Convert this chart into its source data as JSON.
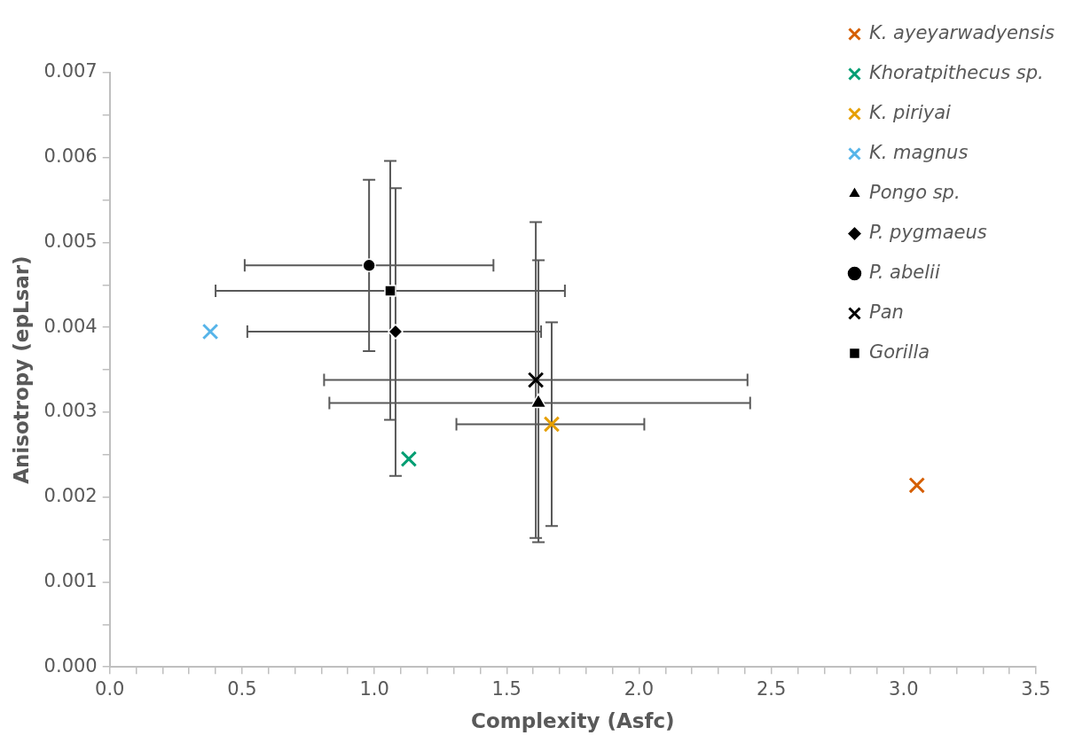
{
  "chart_data": {
    "type": "scatter",
    "xlabel": "Complexity (Asfc)",
    "ylabel": "Anisotropy (epLsar)",
    "xlim": [
      0,
      3.5
    ],
    "ylim": [
      0,
      0.007
    ],
    "xticks": [
      {
        "value": 0,
        "label": "0.0"
      },
      {
        "value": 0.1,
        "label": null
      },
      {
        "value": 0.2,
        "label": null
      },
      {
        "value": 0.3,
        "label": null
      },
      {
        "value": 0.4,
        "label": null
      },
      {
        "value": 0.5,
        "label": "0.5"
      },
      {
        "value": 0.6,
        "label": null
      },
      {
        "value": 0.7,
        "label": null
      },
      {
        "value": 0.8,
        "label": null
      },
      {
        "value": 0.9,
        "label": null
      },
      {
        "value": 1,
        "label": "1.0"
      },
      {
        "value": 1.1,
        "label": null
      },
      {
        "value": 1.2,
        "label": null
      },
      {
        "value": 1.3,
        "label": null
      },
      {
        "value": 1.4,
        "label": null
      },
      {
        "value": 1.5,
        "label": "1.5"
      },
      {
        "value": 1.6,
        "label": null
      },
      {
        "value": 1.7,
        "label": null
      },
      {
        "value": 1.8,
        "label": null
      },
      {
        "value": 1.9,
        "label": null
      },
      {
        "value": 2,
        "label": "2.0"
      },
      {
        "value": 2.1,
        "label": null
      },
      {
        "value": 2.2,
        "label": null
      },
      {
        "value": 2.3,
        "label": null
      },
      {
        "value": 2.4,
        "label": null
      },
      {
        "value": 2.5,
        "label": "2.5"
      },
      {
        "value": 2.6,
        "label": null
      },
      {
        "value": 2.7,
        "label": null
      },
      {
        "value": 2.8,
        "label": null
      },
      {
        "value": 2.9,
        "label": null
      },
      {
        "value": 3,
        "label": "3.0"
      },
      {
        "value": 3.1,
        "label": null
      },
      {
        "value": 3.2,
        "label": null
      },
      {
        "value": 3.3,
        "label": null
      },
      {
        "value": 3.4,
        "label": null
      },
      {
        "value": 3.5,
        "label": "3.5"
      }
    ],
    "yticks": [
      {
        "value": 0,
        "label": "0.000"
      },
      {
        "value": 0.0005,
        "label": null
      },
      {
        "value": 0.001,
        "label": "0.001"
      },
      {
        "value": 0.0015,
        "label": null
      },
      {
        "value": 0.002,
        "label": "0.002"
      },
      {
        "value": 0.0025,
        "label": null
      },
      {
        "value": 0.003,
        "label": "0.003"
      },
      {
        "value": 0.0035,
        "label": null
      },
      {
        "value": 0.004,
        "label": "0.004"
      },
      {
        "value": 0.0045,
        "label": null
      },
      {
        "value": 0.005,
        "label": "0.005"
      },
      {
        "value": 0.0055,
        "label": null
      },
      {
        "value": 0.006,
        "label": "0.006"
      },
      {
        "value": 0.0065,
        "label": null
      },
      {
        "value": 0.007,
        "label": "0.007"
      }
    ],
    "legend": "top right",
    "grid": false,
    "series": [
      {
        "name": "K. ayeyarwadyensis",
        "color": "#d55e00",
        "marker": "cross",
        "x": [
          3.05
        ],
        "values": [
          0.00214
        ]
      },
      {
        "name": "Khoratpithecus sp.",
        "color": "#009e73",
        "marker": "cross",
        "x": [
          1.13
        ],
        "values": [
          0.00245
        ]
      },
      {
        "name": "K. piriyai",
        "color": "#e69f00",
        "marker": "cross",
        "x": [
          1.67
        ],
        "values": [
          0.00286
        ],
        "xerrors": [
          [
            1.31,
            2.02
          ]
        ],
        "errors": [
          [
            0.00166,
            0.00406
          ]
        ]
      },
      {
        "name": "K. magnus",
        "color": "#56b4e9",
        "marker": "cross",
        "x": [
          0.38
        ],
        "values": [
          0.00395
        ]
      },
      {
        "name": "Pongo sp.",
        "color": "#000000",
        "marker": "triangle",
        "x": [
          1.62
        ],
        "values": [
          0.00311
        ],
        "xerrors": [
          [
            0.83,
            2.42
          ]
        ],
        "errors": [
          [
            0.00147,
            0.00479
          ]
        ]
      },
      {
        "name": "P. pygmaeus",
        "color": "#000000",
        "marker": "diamond",
        "x": [
          1.08
        ],
        "values": [
          0.00395
        ],
        "xerrors": [
          [
            0.52,
            1.63
          ]
        ],
        "errors": [
          [
            0.00225,
            0.00564
          ]
        ]
      },
      {
        "name": "P. abelii",
        "color": "#000000",
        "marker": "circle",
        "x": [
          0.98
        ],
        "values": [
          0.00473
        ],
        "xerrors": [
          [
            0.51,
            1.45
          ]
        ],
        "errors": [
          [
            0.00372,
            0.00574
          ]
        ]
      },
      {
        "name": "Pan",
        "color": "#000000",
        "marker": "cross",
        "x": [
          1.61
        ],
        "values": [
          0.00338
        ],
        "xerrors": [
          [
            0.81,
            2.41
          ]
        ],
        "errors": [
          [
            0.00152,
            0.00524
          ]
        ]
      },
      {
        "name": "Gorilla",
        "color": "#000000",
        "marker": "square",
        "x": [
          1.06
        ],
        "values": [
          0.00443
        ],
        "xerrors": [
          [
            0.4,
            1.72
          ]
        ],
        "errors": [
          [
            0.00291,
            0.00596
          ]
        ]
      }
    ]
  }
}
